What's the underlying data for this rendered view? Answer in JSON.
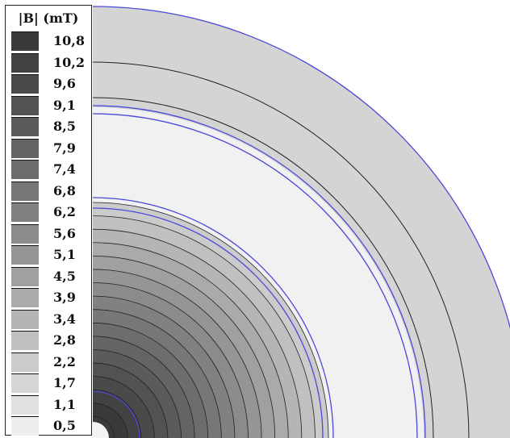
{
  "legend": {
    "title": "|B| (mT)",
    "items": [
      {
        "label": "10,8",
        "color": "#3a3a3a"
      },
      {
        "label": "10,2",
        "color": "#424242"
      },
      {
        "label": "9,6",
        "color": "#4a4a4a"
      },
      {
        "label": "9,1",
        "color": "#525252"
      },
      {
        "label": "8,5",
        "color": "#5b5b5b"
      },
      {
        "label": "7,9",
        "color": "#646464"
      },
      {
        "label": "7,4",
        "color": "#6d6d6d"
      },
      {
        "label": "6,8",
        "color": "#777777"
      },
      {
        "label": "6,2",
        "color": "#818181"
      },
      {
        "label": "5,6",
        "color": "#8b8b8b"
      },
      {
        "label": "5,1",
        "color": "#959595"
      },
      {
        "label": "4,5",
        "color": "#a0a0a0"
      },
      {
        "label": "3,9",
        "color": "#aaaaaa"
      },
      {
        "label": "3,4",
        "color": "#b5b5b5"
      },
      {
        "label": "2,8",
        "color": "#c0c0c0"
      },
      {
        "label": "2,2",
        "color": "#cbcbcb"
      },
      {
        "label": "1,7",
        "color": "#d6d6d6"
      },
      {
        "label": "1,1",
        "color": "#e1e1e1"
      },
      {
        "label": "0,5",
        "color": "#eeeeee"
      }
    ]
  },
  "colors": {
    "boundary": "#4a48d8",
    "contour": "#222222",
    "outer_band": "#d4d4d4",
    "gap_region": "#f1f1f1"
  }
}
